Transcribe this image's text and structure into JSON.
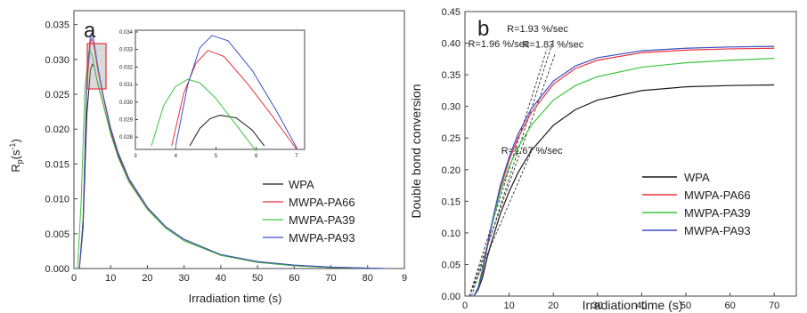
{
  "chart_data": [
    {
      "type": "line",
      "panel_label": "a",
      "xlabel": "Irradiation time (s)",
      "ylabel_main": "R",
      "ylabel_sub": "p",
      "ylabel_unit": "(s",
      "ylabel_exp": "-1",
      "ylabel_close": ")",
      "xlim": [
        0,
        90
      ],
      "ylim": [
        0,
        0.037
      ],
      "xticks": [
        "0",
        "10",
        "20",
        "30",
        "40",
        "50",
        "60",
        "70",
        "80",
        "9"
      ],
      "yticks": [
        "0.000",
        "0.005",
        "0.010",
        "0.015",
        "0.020",
        "0.025",
        "0.030",
        "0.035"
      ],
      "legend": "right",
      "series": [
        {
          "name": "WPA",
          "color": "#1a1a1a",
          "x": [
            1.5,
            2.5,
            3.5,
            4.5,
            5.0,
            5.5,
            6.5,
            8,
            10,
            12,
            15,
            20,
            25,
            30,
            40,
            50,
            60,
            70,
            85
          ],
          "y": [
            0,
            0.006,
            0.022,
            0.0285,
            0.0293,
            0.029,
            0.0265,
            0.0235,
            0.0195,
            0.0162,
            0.0125,
            0.0085,
            0.0058,
            0.004,
            0.0019,
            0.0009,
            0.0004,
            0.00015,
            0
          ]
        },
        {
          "name": "MWPA-PA66",
          "color": "#e8323c",
          "x": [
            1.5,
            2.5,
            3.5,
            4.5,
            4.8,
            5.5,
            6.5,
            8,
            10,
            12,
            15,
            20,
            25,
            30,
            40,
            50,
            60,
            70,
            85
          ],
          "y": [
            0,
            0.007,
            0.026,
            0.0325,
            0.033,
            0.0318,
            0.0285,
            0.0245,
            0.02,
            0.0165,
            0.0128,
            0.0087,
            0.006,
            0.0042,
            0.002,
            0.001,
            0.0005,
            0.0002,
            0
          ]
        },
        {
          "name": "MWPA-PA39",
          "color": "#3ec43e",
          "x": [
            1.0,
            2.0,
            3.0,
            4.0,
            4.3,
            5.0,
            6.0,
            8,
            10,
            12,
            15,
            20,
            25,
            30,
            40,
            50,
            60,
            70,
            85
          ],
          "y": [
            0,
            0.01,
            0.026,
            0.031,
            0.0313,
            0.0305,
            0.0277,
            0.0235,
            0.0193,
            0.016,
            0.0124,
            0.0085,
            0.0058,
            0.004,
            0.0019,
            0.0009,
            0.0004,
            0.00015,
            0
          ]
        },
        {
          "name": "MWPA-PA93",
          "color": "#3a4fc4",
          "x": [
            1.5,
            2.5,
            3.5,
            4.5,
            4.9,
            5.5,
            6.5,
            8,
            10,
            12,
            15,
            20,
            25,
            30,
            40,
            50,
            60,
            70,
            85
          ],
          "y": [
            0,
            0.007,
            0.027,
            0.0335,
            0.0338,
            0.0325,
            0.029,
            0.0248,
            0.0202,
            0.0167,
            0.0129,
            0.0088,
            0.006,
            0.0042,
            0.002,
            0.001,
            0.0005,
            0.0002,
            0
          ]
        }
      ],
      "inset": {
        "xlim": [
          3,
          7.2
        ],
        "ylim": [
          0.0273,
          0.0341
        ],
        "xticks": [
          "3",
          "4",
          "5",
          "6",
          "7"
        ],
        "yticks": [
          "0.028",
          "0.029",
          "0.030",
          "0.031",
          "0.032",
          "0.033",
          "0.034"
        ],
        "series": [
          {
            "name": "WPA",
            "color": "#1a1a1a",
            "x": [
              4.35,
              4.6,
              4.85,
              5.1,
              5.5,
              5.9,
              6.2
            ],
            "y": [
              0.0275,
              0.0285,
              0.02905,
              0.02925,
              0.0291,
              0.0284,
              0.0275
            ]
          },
          {
            "name": "MWPA-PA66",
            "color": "#e8323c",
            "x": [
              3.9,
              4.2,
              4.5,
              4.8,
              5.2,
              5.8,
              6.4,
              7.0
            ],
            "y": [
              0.0275,
              0.0305,
              0.0322,
              0.03295,
              0.0326,
              0.031,
              0.0292,
              0.0273
            ]
          },
          {
            "name": "MWPA-PA39",
            "color": "#3ec43e",
            "x": [
              3.4,
              3.7,
              4.0,
              4.3,
              4.6,
              5.0,
              5.5,
              6.0
            ],
            "y": [
              0.0275,
              0.0298,
              0.0309,
              0.0313,
              0.0311,
              0.0302,
              0.0287,
              0.0272
            ]
          },
          {
            "name": "MWPA-PA93",
            "color": "#3a4fc4",
            "x": [
              4.0,
              4.3,
              4.6,
              4.9,
              5.3,
              5.9,
              6.5,
              7.0
            ],
            "y": [
              0.0275,
              0.031,
              0.0331,
              0.0338,
              0.0335,
              0.0318,
              0.0295,
              0.0274
            ]
          }
        ]
      }
    },
    {
      "type": "line",
      "panel_label": "b",
      "xlabel": "Irradiation time (s)",
      "ylabel": "Double bond conversion",
      "xlim": [
        0,
        75
      ],
      "ylim": [
        0,
        0.45
      ],
      "xticks": [
        "0",
        "10",
        "20",
        "30",
        "40",
        "50",
        "60",
        "70"
      ],
      "yticks": [
        "0.00",
        "0.05",
        "0.10",
        "0.15",
        "0.20",
        "0.25",
        "0.30",
        "0.35",
        "0.40",
        "0.45"
      ],
      "legend": "lower-right",
      "series": [
        {
          "name": "WPA",
          "color": "#1a1a1a",
          "x": [
            2,
            3,
            4,
            5,
            6,
            8,
            10,
            12,
            15,
            20,
            25,
            30,
            40,
            50,
            60,
            70
          ],
          "y": [
            0,
            0.01,
            0.03,
            0.06,
            0.085,
            0.13,
            0.165,
            0.195,
            0.23,
            0.27,
            0.295,
            0.31,
            0.325,
            0.331,
            0.333,
            0.334
          ]
        },
        {
          "name": "MWPA-PA66",
          "color": "#e8323c",
          "x": [
            2,
            3,
            4,
            5,
            6,
            8,
            10,
            12,
            15,
            20,
            25,
            30,
            40,
            50,
            60,
            70
          ],
          "y": [
            0,
            0.012,
            0.038,
            0.075,
            0.11,
            0.17,
            0.215,
            0.25,
            0.29,
            0.335,
            0.36,
            0.373,
            0.385,
            0.389,
            0.391,
            0.392
          ]
        },
        {
          "name": "MWPA-PA39",
          "color": "#3ec43e",
          "x": [
            2,
            3,
            4,
            5,
            6,
            8,
            10,
            12,
            15,
            20,
            25,
            30,
            40,
            50,
            60,
            70
          ],
          "y": [
            0,
            0.015,
            0.045,
            0.08,
            0.11,
            0.165,
            0.205,
            0.235,
            0.27,
            0.31,
            0.333,
            0.347,
            0.362,
            0.369,
            0.373,
            0.376
          ]
        },
        {
          "name": "MWPA-PA93",
          "color": "#3a4fc4",
          "x": [
            2,
            3,
            4,
            5,
            6,
            8,
            10,
            12,
            15,
            20,
            25,
            30,
            40,
            50,
            60,
            70
          ],
          "y": [
            0,
            0.012,
            0.04,
            0.078,
            0.113,
            0.175,
            0.22,
            0.256,
            0.296,
            0.34,
            0.364,
            0.377,
            0.388,
            0.392,
            0.394,
            0.395
          ]
        }
      ],
      "tangents": [
        {
          "label": "R=1.96 %/sec",
          "x1": 1,
          "y1": 0,
          "x2": 18.5,
          "y2": 0.39,
          "lx": 0.7,
          "ly": 0.394
        },
        {
          "label": "R=1.93 %/sec",
          "x1": 1.5,
          "y1": 0,
          "x2": 20,
          "y2": 0.405,
          "lx": 9.5,
          "ly": 0.418
        },
        {
          "label": "R=1.83 %/sec",
          "x1": 1,
          "y1": 0,
          "x2": 20.5,
          "y2": 0.385,
          "lx": 13,
          "ly": 0.393
        },
        {
          "label": "R=1.67 %/sec",
          "x1": 1,
          "y1": 0,
          "x2": 15,
          "y2": 0.228,
          "lx": 8.2,
          "ly": 0.225
        }
      ]
    }
  ]
}
